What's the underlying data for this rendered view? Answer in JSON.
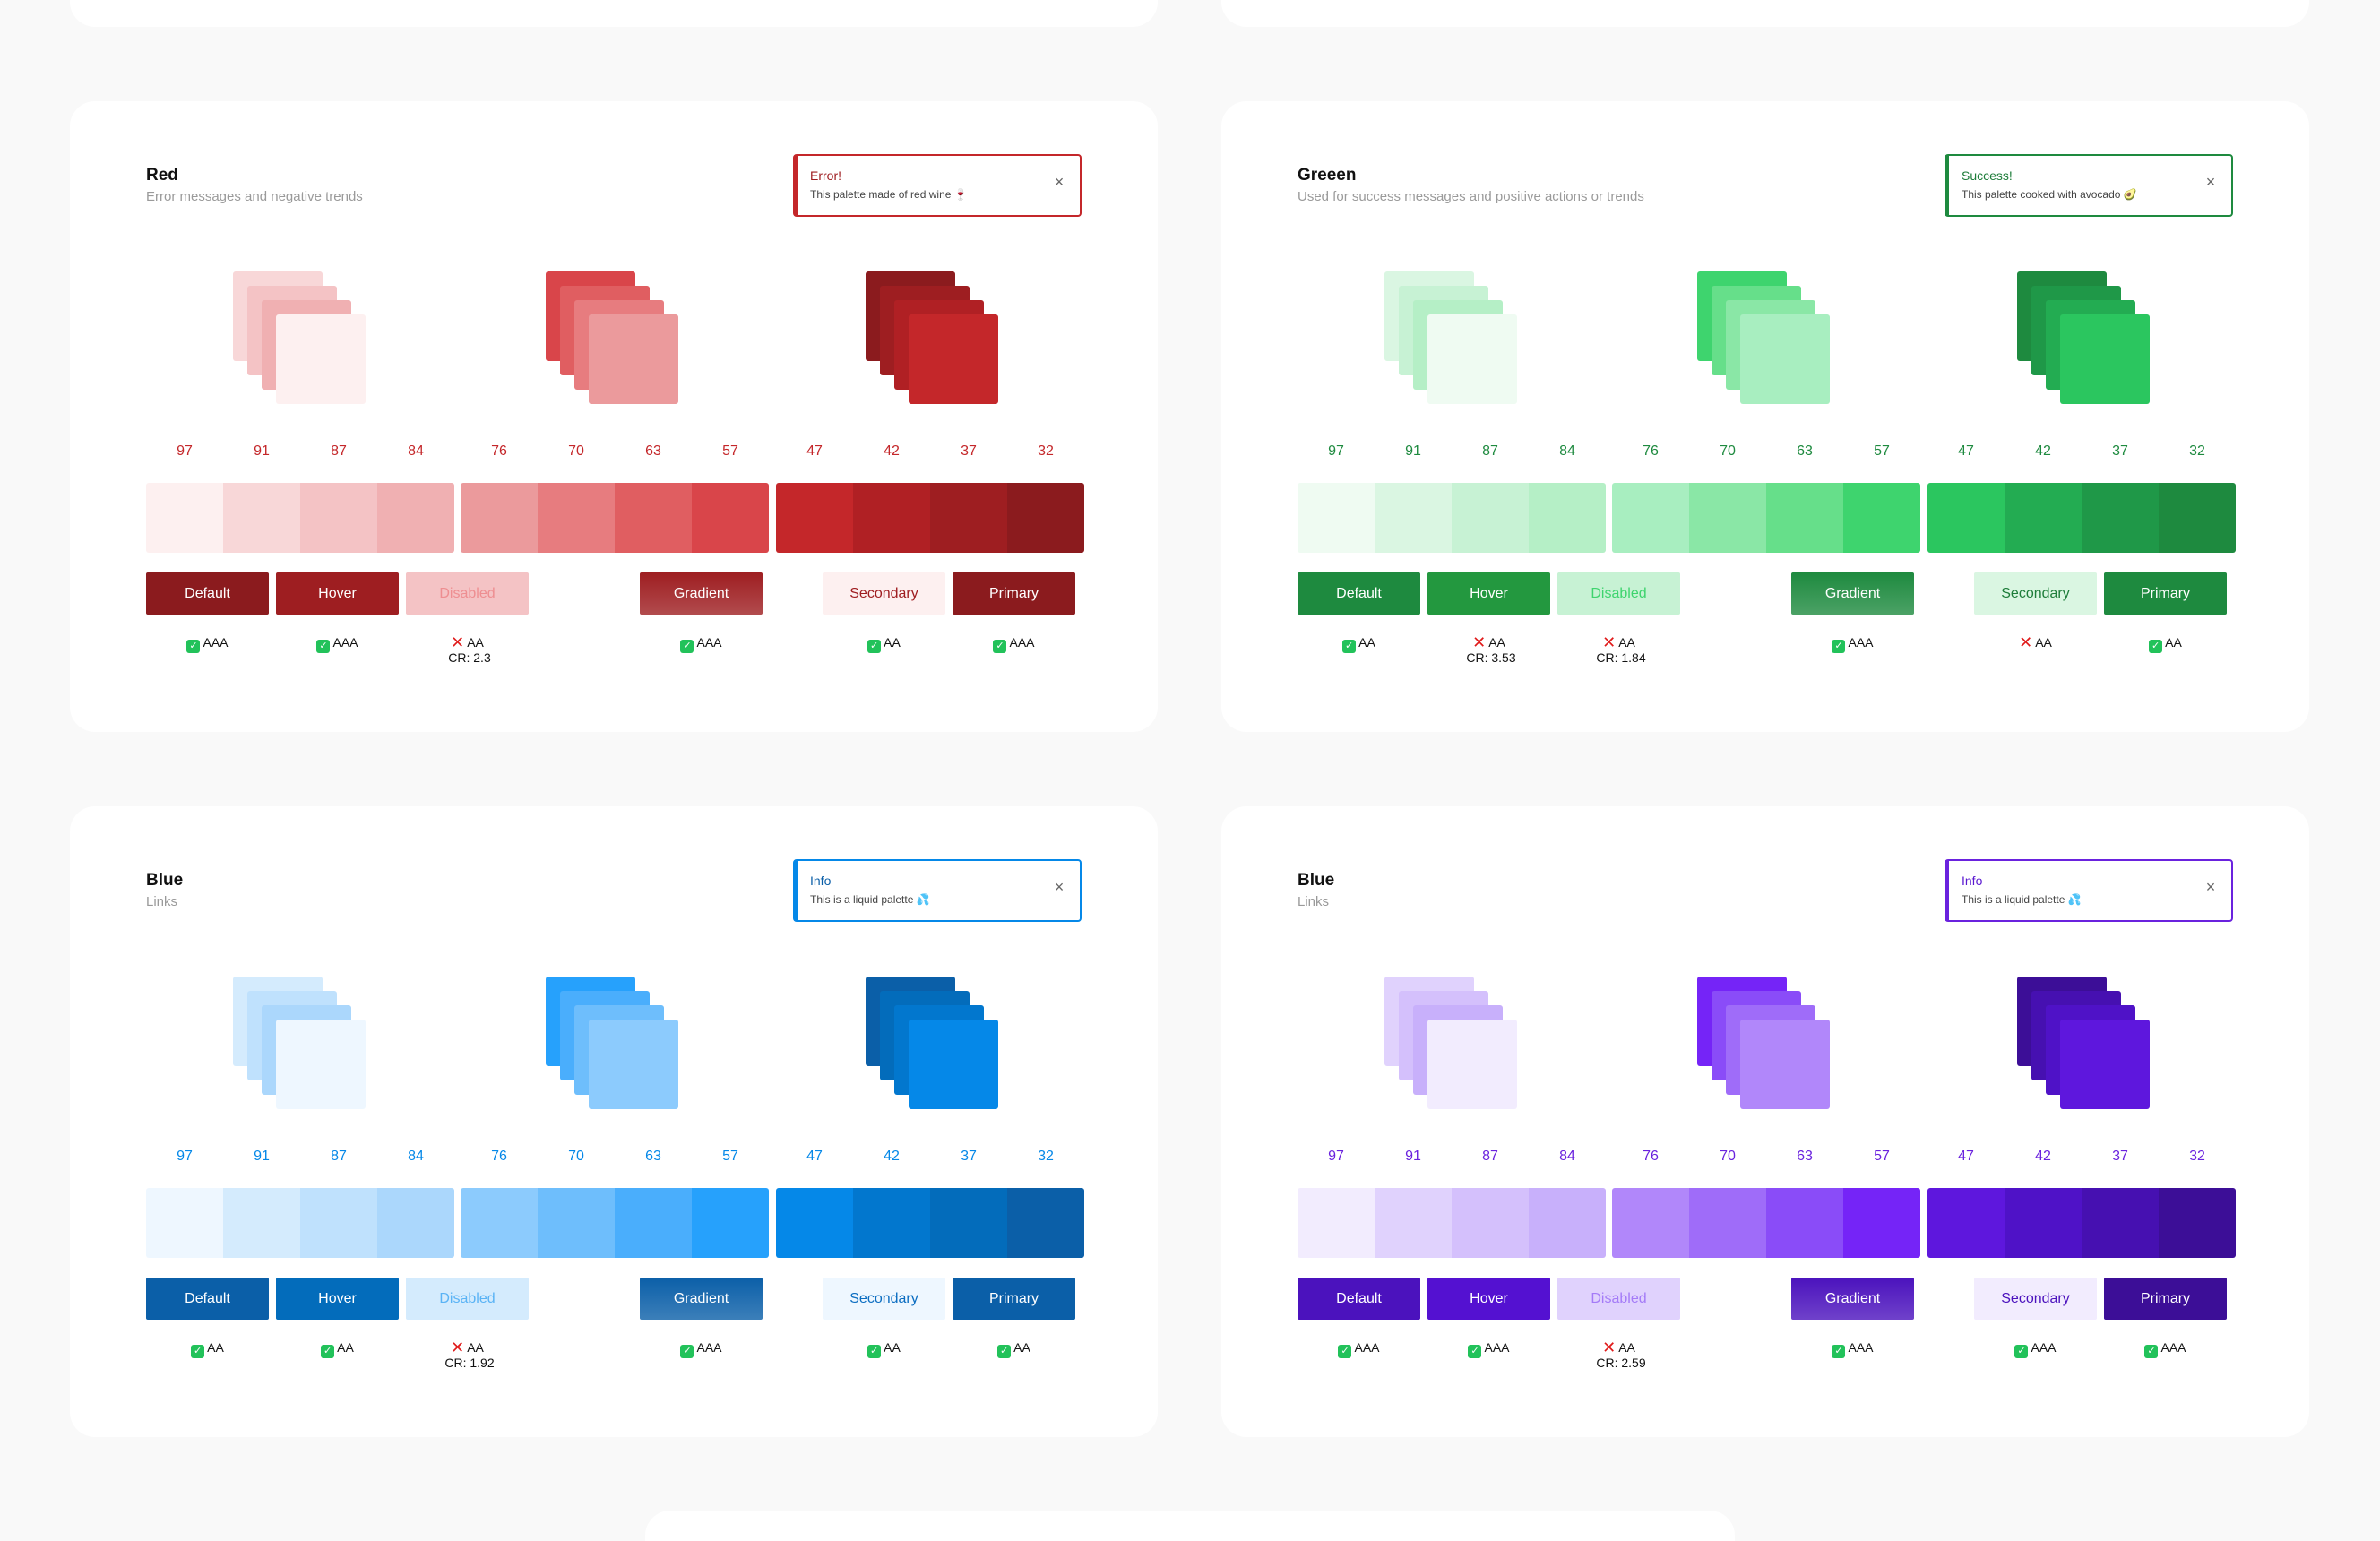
{
  "level_labels": [
    "97",
    "91",
    "87",
    "84",
    "76",
    "70",
    "63",
    "57",
    "47",
    "42",
    "37",
    "32"
  ],
  "cards": [
    {
      "title": "Red",
      "subtitle": "Error messages and negative trends",
      "accent": "#c4272a",
      "title_color": "#9e1c1f",
      "alert": {
        "title": "Error!",
        "message": "This palette made of red wine 🍷",
        "close_icon": "close-icon"
      },
      "swatches": [
        "#fdf0f0",
        "#f8d7d8",
        "#f4c3c5",
        "#f0b0b2",
        "#eb9a9c",
        "#e77c7f",
        "#e05e61",
        "#d9454a",
        "#c4272a",
        "#b02024",
        "#9e1e21",
        "#8b1b1e"
      ],
      "buttons": [
        {
          "label": "Default",
          "bg": "#8b1b1e",
          "fg": "#ffffff"
        },
        {
          "label": "Hover",
          "bg": "#9e1e21",
          "fg": "#ffffff"
        },
        {
          "label": "Disabled",
          "bg": "#f4c3c5",
          "fg": "#ee8e91"
        },
        {
          "label": "Gradient",
          "bg": "#9e1e21",
          "fg": "#ffffff",
          "gradient": true
        },
        {
          "label": "Secondary",
          "bg": "#fdf0f0",
          "fg": "#9e1c1f"
        },
        {
          "label": "Primary",
          "bg": "#8b1b1e",
          "fg": "#ffffff"
        }
      ],
      "contrast": [
        {
          "pass": true,
          "level": "AAA"
        },
        {
          "pass": true,
          "level": "AAA"
        },
        {
          "pass": false,
          "level": "AA",
          "ratio": "CR: 2.3"
        },
        {
          "pass": true,
          "level": "AAA"
        },
        {
          "pass": true,
          "level": "AA"
        },
        {
          "pass": true,
          "level": "AAA"
        }
      ]
    },
    {
      "title": "Greeen",
      "subtitle": "Used for success messages and positive actions or trends",
      "accent": "#1e8a3f",
      "title_color": "#1e7d3a",
      "alert": {
        "title": "Success!",
        "message": "This palette cooked with avocado 🥑",
        "close_icon": "close-icon"
      },
      "swatches": [
        "#effbf2",
        "#daf6e2",
        "#c7f2d4",
        "#b5efc6",
        "#a8eec0",
        "#8ae7a6",
        "#66df8a",
        "#3ed46e",
        "#2bc65f",
        "#23ac52",
        "#1f9848",
        "#1e8a3f"
      ],
      "buttons": [
        {
          "label": "Default",
          "bg": "#1e8a3f",
          "fg": "#ffffff"
        },
        {
          "label": "Hover",
          "bg": "#23983f",
          "fg": "#ffffff"
        },
        {
          "label": "Disabled",
          "bg": "#c7f2d4",
          "fg": "#3ed46e"
        },
        {
          "label": "Gradient",
          "bg": "#1e8a3f",
          "fg": "#ffffff",
          "gradient": true
        },
        {
          "label": "Secondary",
          "bg": "#daf6e2",
          "fg": "#1e7d3a"
        },
        {
          "label": "Primary",
          "bg": "#1e8a3f",
          "fg": "#ffffff"
        }
      ],
      "contrast": [
        {
          "pass": true,
          "level": "AA"
        },
        {
          "pass": false,
          "level": "AA",
          "ratio": "CR: 3.53"
        },
        {
          "pass": false,
          "level": "AA",
          "ratio": "CR: 1.84"
        },
        {
          "pass": true,
          "level": "AAA"
        },
        {
          "pass": false,
          "level": "AA"
        },
        {
          "pass": true,
          "level": "AA"
        }
      ]
    },
    {
      "title": "Blue",
      "subtitle": "Links",
      "accent": "#0588e8",
      "title_color": "#0b5fa8",
      "alert": {
        "title": "Info",
        "message": "This is a liquid palette 💦",
        "close_icon": "close-icon"
      },
      "swatches": [
        "#eef7ff",
        "#d4ebfd",
        "#bfe1fd",
        "#abd7fc",
        "#8ccbfd",
        "#6ebefc",
        "#4aaefc",
        "#26a1fc",
        "#0588e8",
        "#0277ce",
        "#036cbb",
        "#0b5fa8"
      ],
      "buttons": [
        {
          "label": "Default",
          "bg": "#0b5fa8",
          "fg": "#ffffff"
        },
        {
          "label": "Hover",
          "bg": "#036cbb",
          "fg": "#ffffff"
        },
        {
          "label": "Disabled",
          "bg": "#d4ebfd",
          "fg": "#5ab3f5"
        },
        {
          "label": "Gradient",
          "bg": "#0b5fa8",
          "fg": "#ffffff",
          "gradient": true
        },
        {
          "label": "Secondary",
          "bg": "#eef7ff",
          "fg": "#0b6dc1"
        },
        {
          "label": "Primary",
          "bg": "#0b5fa8",
          "fg": "#ffffff"
        }
      ],
      "contrast": [
        {
          "pass": true,
          "level": "AA"
        },
        {
          "pass": true,
          "level": "AA"
        },
        {
          "pass": false,
          "level": "AA",
          "ratio": "CR: 1.92"
        },
        {
          "pass": true,
          "level": "AAA"
        },
        {
          "pass": true,
          "level": "AA"
        },
        {
          "pass": true,
          "level": "AA"
        }
      ]
    },
    {
      "title": "Blue",
      "subtitle": "Links",
      "accent": "#6a22de",
      "title_color": "#5a18d0",
      "alert": {
        "title": "Info",
        "message": "This is a liquid palette 💦",
        "close_icon": "close-icon"
      },
      "swatches": [
        "#f2ecfe",
        "#e0d2fd",
        "#d4c0fc",
        "#c8b0fb",
        "#b187fa",
        "#9f6cf9",
        "#8a4cf8",
        "#7524f7",
        "#5e17dd",
        "#4f12c7",
        "#4610b1",
        "#3c0e97"
      ],
      "buttons": [
        {
          "label": "Default",
          "bg": "#4b12bd",
          "fg": "#ffffff"
        },
        {
          "label": "Hover",
          "bg": "#5411d1",
          "fg": "#ffffff"
        },
        {
          "label": "Disabled",
          "bg": "#e0d2fd",
          "fg": "#a47bf7"
        },
        {
          "label": "Gradient",
          "bg": "#4b12bd",
          "fg": "#ffffff",
          "gradient": true
        },
        {
          "label": "Secondary",
          "bg": "#f2ecfe",
          "fg": "#4b12bd"
        },
        {
          "label": "Primary",
          "bg": "#3c0e97",
          "fg": "#ffffff"
        }
      ],
      "contrast": [
        {
          "pass": true,
          "level": "AAA"
        },
        {
          "pass": true,
          "level": "AAA"
        },
        {
          "pass": false,
          "level": "AA",
          "ratio": "CR: 2.59"
        },
        {
          "pass": true,
          "level": "AAA"
        },
        {
          "pass": true,
          "level": "AAA"
        },
        {
          "pass": true,
          "level": "AAA"
        }
      ]
    }
  ]
}
